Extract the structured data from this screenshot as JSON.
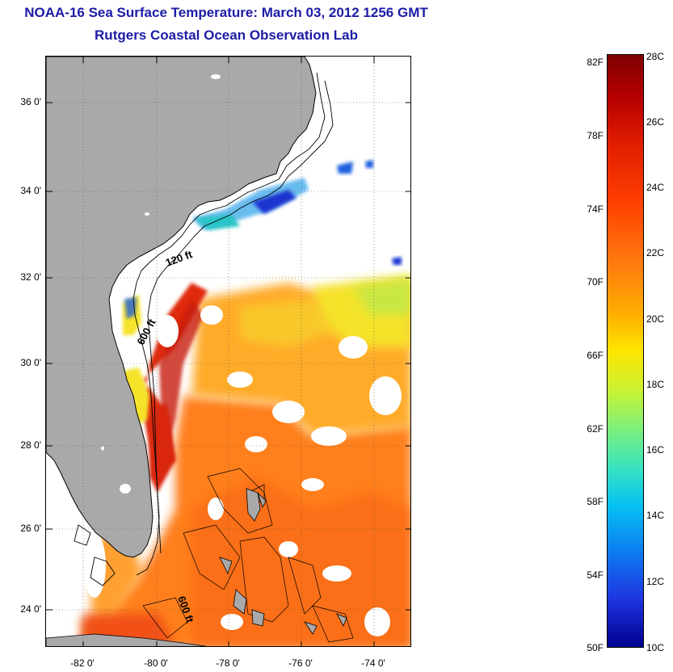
{
  "title": {
    "line1": "NOAA-16 Sea Surface Temperature:  March 03, 2012 1256 GMT",
    "line2": "Rutgers Coastal Ocean Observation Lab"
  },
  "map": {
    "lat_labels": [
      "36 0'",
      "34 0'",
      "32 0'",
      "30 0'",
      "28 0'",
      "26 0'",
      "24 0'"
    ],
    "lon_labels": [
      "-82 0'",
      "-80 0'",
      "-78 0'",
      "-76 0'",
      "-74 0'"
    ],
    "contour_labels": [
      "120 ft",
      "600 ft",
      "600 ft"
    ],
    "colors": {
      "land": "#a9a9a9",
      "ocean_no_data": "#ffffff",
      "warm_core": "#e02a0a",
      "orange": "#ff7f1e",
      "yellow": "#f5e32a",
      "cold_coastal": "#1a5ee0"
    }
  },
  "colorbar": {
    "fahrenheit_labels": [
      "82F",
      "78F",
      "74F",
      "70F",
      "66F",
      "62F",
      "58F",
      "54F",
      "50F"
    ],
    "celsius_labels": [
      "28C",
      "26C",
      "24C",
      "22C",
      "20C",
      "18C",
      "16C",
      "14C",
      "12C",
      "10C"
    ],
    "range_c": [
      10,
      28
    ],
    "range_f": [
      50,
      82
    ]
  }
}
